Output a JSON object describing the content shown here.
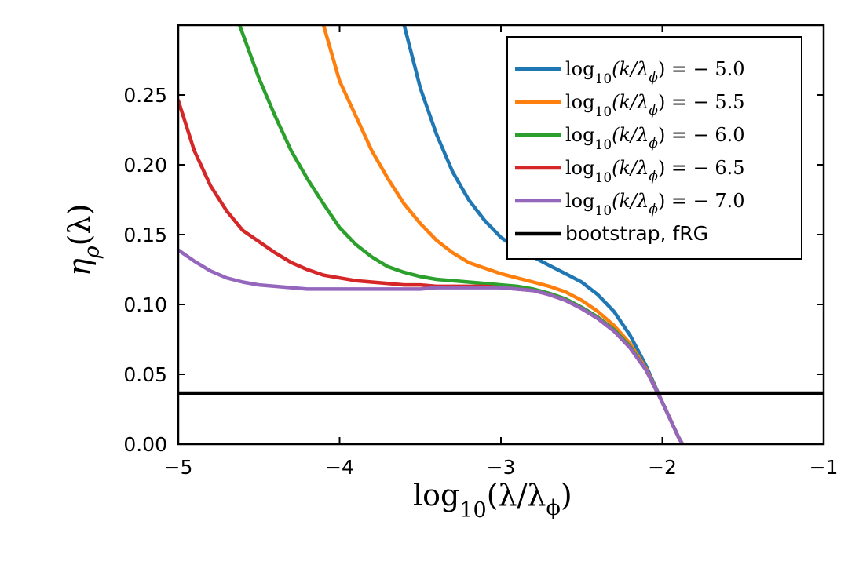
{
  "chart_data": {
    "type": "line",
    "xlim": [
      -5,
      -1
    ],
    "ylim": [
      0,
      0.3
    ],
    "x_ticks": [
      -5,
      -4,
      -3,
      -2,
      -1
    ],
    "x_tick_labels": [
      "−5",
      "−4",
      "−3",
      "−2",
      "−1"
    ],
    "y_ticks": [
      0,
      0.05,
      0.1,
      0.15,
      0.2,
      0.25
    ],
    "y_tick_labels": [
      "0.00",
      "0.05",
      "0.10",
      "0.15",
      "0.20",
      "0.25"
    ],
    "xlabel": {
      "base": "log",
      "sub": "10",
      "arg": "(λ/λ",
      "arg_sub": "ϕ",
      "close": ")"
    },
    "ylabel": {
      "base": "η",
      "sub": "ρ",
      "arg": "(λ)"
    },
    "grid": false,
    "legend_position": "top-right",
    "legend_prefix": {
      "base": "log",
      "sub": "10",
      "arg": "(k/λ",
      "arg_sub": "ϕ",
      "close": ") ="
    },
    "series": [
      {
        "name": "− 5.0",
        "color": "#1f77b4",
        "x": [
          -3.6,
          -3.5,
          -3.4,
          -3.3,
          -3.2,
          -3.1,
          -3.0,
          -2.9,
          -2.8,
          -2.7,
          -2.6,
          -2.5,
          -2.4,
          -2.3,
          -2.2,
          -2.1,
          -2.0,
          -1.9,
          -1.85
        ],
        "y": [
          0.3,
          0.255,
          0.222,
          0.195,
          0.175,
          0.16,
          0.148,
          0.14,
          0.134,
          0.128,
          0.122,
          0.116,
          0.107,
          0.095,
          0.078,
          0.056,
          0.03,
          0.005,
          -0.005
        ]
      },
      {
        "name": "− 5.5",
        "color": "#ff7f0e",
        "x": [
          -4.1,
          -4.0,
          -3.9,
          -3.8,
          -3.7,
          -3.6,
          -3.5,
          -3.4,
          -3.3,
          -3.2,
          -3.1,
          -3.0,
          -2.9,
          -2.8,
          -2.7,
          -2.6,
          -2.5,
          -2.4,
          -2.3,
          -2.2,
          -2.1,
          -2.0,
          -1.9,
          -1.85
        ],
        "y": [
          0.3,
          0.26,
          0.235,
          0.21,
          0.19,
          0.172,
          0.158,
          0.146,
          0.137,
          0.13,
          0.126,
          0.122,
          0.119,
          0.116,
          0.113,
          0.109,
          0.103,
          0.095,
          0.085,
          0.072,
          0.054,
          0.03,
          0.005,
          -0.005
        ]
      },
      {
        "name": "− 6.0",
        "color": "#2ca02c",
        "x": [
          -4.62,
          -4.5,
          -4.4,
          -4.3,
          -4.2,
          -4.1,
          -4.0,
          -3.9,
          -3.8,
          -3.7,
          -3.6,
          -3.5,
          -3.4,
          -3.3,
          -3.2,
          -3.1,
          -3.0,
          -2.9,
          -2.8,
          -2.7,
          -2.6,
          -2.5,
          -2.4,
          -2.3,
          -2.2,
          -2.1,
          -2.0,
          -1.9,
          -1.85
        ],
        "y": [
          0.3,
          0.262,
          0.235,
          0.21,
          0.19,
          0.172,
          0.155,
          0.143,
          0.134,
          0.127,
          0.123,
          0.12,
          0.118,
          0.117,
          0.116,
          0.115,
          0.114,
          0.113,
          0.111,
          0.108,
          0.104,
          0.098,
          0.091,
          0.082,
          0.07,
          0.053,
          0.03,
          0.005,
          -0.005
        ]
      },
      {
        "name": "− 6.5",
        "color": "#d62728",
        "x": [
          -5.0,
          -4.9,
          -4.8,
          -4.7,
          -4.6,
          -4.5,
          -4.4,
          -4.3,
          -4.2,
          -4.1,
          -4.0,
          -3.9,
          -3.8,
          -3.7,
          -3.6,
          -3.5,
          -3.4,
          -3.3,
          -3.2,
          -3.1,
          -3.0,
          -2.9,
          -2.8,
          -2.7,
          -2.6,
          -2.5,
          -2.4,
          -2.3,
          -2.2,
          -2.1,
          -2.0,
          -1.9,
          -1.85
        ],
        "y": [
          0.246,
          0.21,
          0.185,
          0.167,
          0.153,
          0.145,
          0.137,
          0.13,
          0.125,
          0.121,
          0.119,
          0.117,
          0.116,
          0.115,
          0.114,
          0.114,
          0.113,
          0.113,
          0.113,
          0.113,
          0.112,
          0.111,
          0.11,
          0.107,
          0.103,
          0.097,
          0.09,
          0.081,
          0.069,
          0.053,
          0.03,
          0.005,
          -0.005
        ]
      },
      {
        "name": "− 7.0",
        "color": "#9467bd",
        "x": [
          -5.0,
          -4.9,
          -4.8,
          -4.7,
          -4.6,
          -4.5,
          -4.4,
          -4.3,
          -4.2,
          -4.1,
          -4.0,
          -3.9,
          -3.8,
          -3.7,
          -3.6,
          -3.5,
          -3.4,
          -3.3,
          -3.2,
          -3.1,
          -3.0,
          -2.9,
          -2.8,
          -2.7,
          -2.6,
          -2.5,
          -2.4,
          -2.3,
          -2.2,
          -2.1,
          -2.0,
          -1.9,
          -1.85
        ],
        "y": [
          0.139,
          0.131,
          0.124,
          0.119,
          0.116,
          0.114,
          0.113,
          0.112,
          0.111,
          0.111,
          0.111,
          0.111,
          0.111,
          0.111,
          0.111,
          0.111,
          0.112,
          0.112,
          0.112,
          0.112,
          0.112,
          0.111,
          0.11,
          0.107,
          0.103,
          0.097,
          0.09,
          0.081,
          0.069,
          0.053,
          0.03,
          0.005,
          -0.005
        ]
      },
      {
        "name": "bootstrap, fRG",
        "color": "#000000",
        "x": [
          -5,
          -1
        ],
        "y": [
          0.0365,
          0.0365
        ]
      }
    ]
  }
}
